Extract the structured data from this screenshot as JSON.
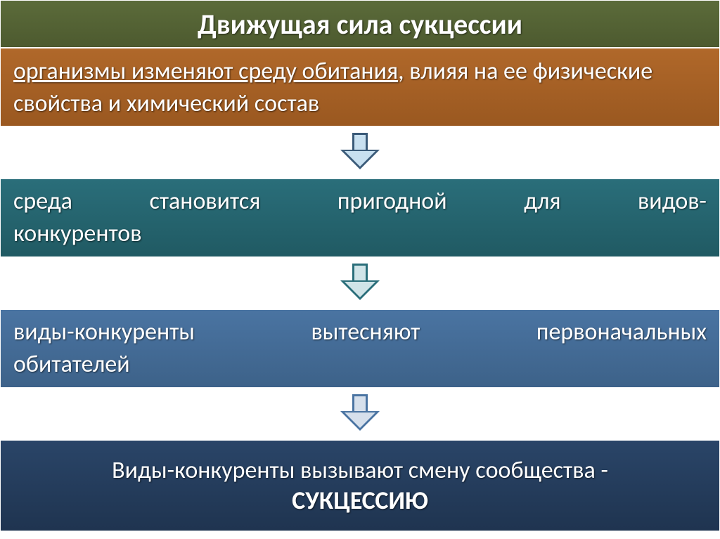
{
  "diagram": {
    "type": "flowchart",
    "background_color": "#ffffff",
    "title": {
      "text": "Движущая сила сукцессии",
      "background_gradient": [
        "#5b6b3a",
        "#4d5a2f"
      ],
      "text_color": "#ffffff",
      "font_size": 40,
      "font_weight": "bold"
    },
    "steps": [
      {
        "id": "step1",
        "text_underlined": "организмы изменяют среду обитания",
        "text_rest": ", влияя на ее физические свойства и химический состав",
        "background_gradient": [
          "#b0682a",
          "#9a5820"
        ],
        "text_color": "#ffffff",
        "font_size": 34
      },
      {
        "id": "step2",
        "line1_words": [
          "среда",
          "становится",
          "пригодной",
          "для",
          "видов-"
        ],
        "line2": "конкурентов",
        "background_gradient": [
          "#2a6e7a",
          "#205a63"
        ],
        "text_color": "#ffffff",
        "font_size": 34
      },
      {
        "id": "step3",
        "line1_words": [
          "виды-конкуренты",
          "вытесняют",
          "первоначальных"
        ],
        "line2": "обитателей",
        "background_gradient": [
          "#4a74a2",
          "#3d6289"
        ],
        "text_color": "#ffffff",
        "font_size": 34
      },
      {
        "id": "step4",
        "text1": "Виды-конкуренты вызывают смену сообщества -",
        "text2": "СУКЦЕССИЮ",
        "background_gradient": [
          "#2a4568",
          "#1f3450"
        ],
        "text_color": "#ffffff",
        "font_size": 34,
        "font_size_bold": 36
      }
    ],
    "arrows": [
      {
        "stroke_color": "#3a5a78",
        "fill_color": "#c8e0f0",
        "stroke_width": 3
      },
      {
        "stroke_color": "#2a6e7a",
        "fill_color": "#d0e4e8",
        "stroke_width": 3
      },
      {
        "stroke_color": "#4a74a2",
        "fill_color": "#d6e0ec",
        "stroke_width": 3
      }
    ]
  }
}
